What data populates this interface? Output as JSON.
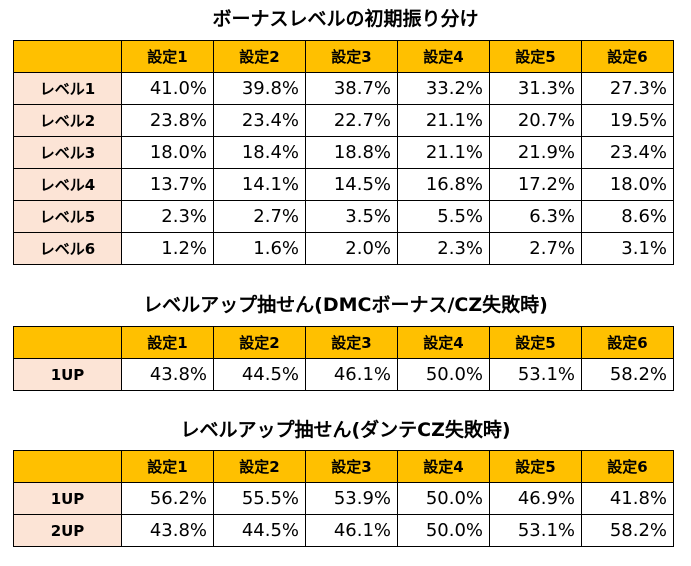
{
  "table1": {
    "title": "ボーナスレベルの初期振り分け",
    "headers": [
      "設定1",
      "設定2",
      "設定3",
      "設定4",
      "設定5",
      "設定6"
    ],
    "rows": [
      {
        "label": "レベル1",
        "values": [
          "41.0%",
          "39.8%",
          "38.7%",
          "33.2%",
          "31.3%",
          "27.3%"
        ]
      },
      {
        "label": "レベル2",
        "values": [
          "23.8%",
          "23.4%",
          "22.7%",
          "21.1%",
          "20.7%",
          "19.5%"
        ]
      },
      {
        "label": "レベル3",
        "values": [
          "18.0%",
          "18.4%",
          "18.8%",
          "21.1%",
          "21.9%",
          "23.4%"
        ]
      },
      {
        "label": "レベル4",
        "values": [
          "13.7%",
          "14.1%",
          "14.5%",
          "16.8%",
          "17.2%",
          "18.0%"
        ]
      },
      {
        "label": "レベル5",
        "values": [
          "2.3%",
          "2.7%",
          "3.5%",
          "5.5%",
          "6.3%",
          "8.6%"
        ]
      },
      {
        "label": "レベル6",
        "values": [
          "1.2%",
          "1.6%",
          "2.0%",
          "2.3%",
          "2.7%",
          "3.1%"
        ]
      }
    ]
  },
  "table2": {
    "title": "レベルアップ抽せん(DMCボーナス/CZ失敗時)",
    "headers": [
      "設定1",
      "設定2",
      "設定3",
      "設定4",
      "設定5",
      "設定6"
    ],
    "rows": [
      {
        "label": "1UP",
        "values": [
          "43.8%",
          "44.5%",
          "46.1%",
          "50.0%",
          "53.1%",
          "58.2%"
        ]
      }
    ]
  },
  "table3": {
    "title": "レベルアップ抽せん(ダンテCZ失敗時)",
    "headers": [
      "設定1",
      "設定2",
      "設定3",
      "設定4",
      "設定5",
      "設定6"
    ],
    "rows": [
      {
        "label": "1UP",
        "values": [
          "56.2%",
          "55.5%",
          "53.9%",
          "50.0%",
          "46.9%",
          "41.8%"
        ]
      },
      {
        "label": "2UP",
        "values": [
          "43.8%",
          "44.5%",
          "46.1%",
          "50.0%",
          "53.1%",
          "58.2%"
        ]
      }
    ]
  },
  "colors": {
    "header_bg": "#ffc000",
    "rowhead_bg": "#fce4d6",
    "border": "#000000"
  }
}
